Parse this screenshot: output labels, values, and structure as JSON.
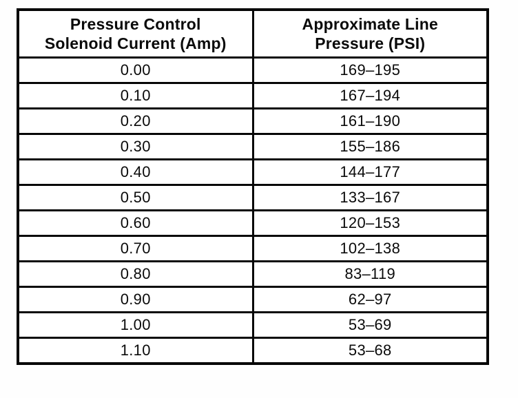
{
  "table": {
    "columns": [
      {
        "line1": "Pressure Control",
        "line2": "Solenoid Current (Amp)"
      },
      {
        "line1": "Approximate Line",
        "line2": "Pressure (PSI)"
      }
    ],
    "rows": [
      {
        "current": "0.00",
        "pressure": "169–195"
      },
      {
        "current": "0.10",
        "pressure": "167–194"
      },
      {
        "current": "0.20",
        "pressure": "161–190"
      },
      {
        "current": "0.30",
        "pressure": "155–186"
      },
      {
        "current": "0.40",
        "pressure": "144–177"
      },
      {
        "current": "0.50",
        "pressure": "133–167"
      },
      {
        "current": "0.60",
        "pressure": "120–153"
      },
      {
        "current": "0.70",
        "pressure": "102–138"
      },
      {
        "current": "0.80",
        "pressure": "83–119"
      },
      {
        "current": "0.90",
        "pressure": "62–97"
      },
      {
        "current": "1.00",
        "pressure": "53–69"
      },
      {
        "current": "1.10",
        "pressure": "53–68"
      }
    ]
  }
}
